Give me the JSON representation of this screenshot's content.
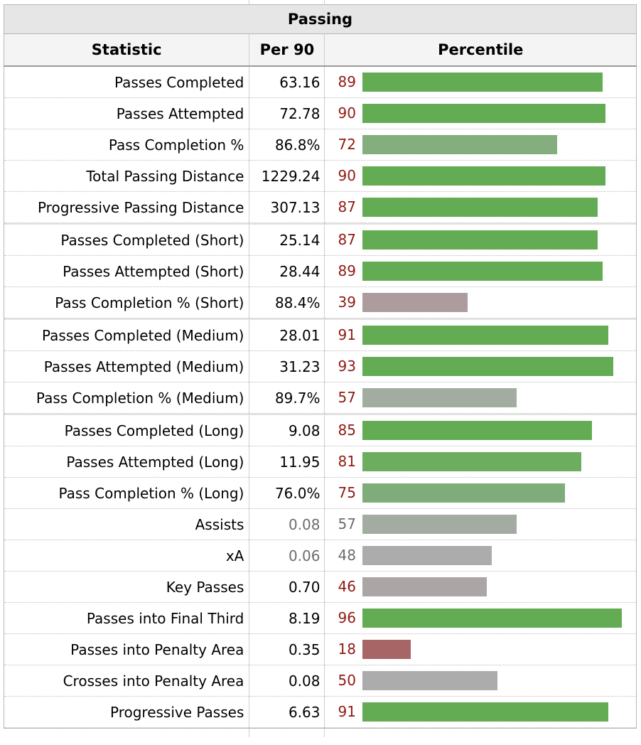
{
  "table_title": "Passing",
  "columns": {
    "statistic": "Statistic",
    "per90": "Per 90",
    "percentile": "Percentile"
  },
  "colors": {
    "high": "#64ac54",
    "mid_high": "#7fad79",
    "mid": "#a3aca1",
    "neutral": "#acacac",
    "low_mid": "#ad9c9e",
    "low": "#a76565",
    "percentile_text": "#8f1a12"
  },
  "groups": [
    [
      {
        "statistic": "Passes Completed",
        "per90": "63.16",
        "percentile": "89",
        "pct_value": 89,
        "color": "#64ac54"
      },
      {
        "statistic": "Passes Attempted",
        "per90": "72.78",
        "percentile": "90",
        "pct_value": 90,
        "color": "#64ac54"
      },
      {
        "statistic": "Pass Completion %",
        "per90": "86.8%",
        "percentile": "72",
        "pct_value": 72,
        "color": "#84ae7d"
      },
      {
        "statistic": "Total Passing Distance",
        "per90": "1229.24",
        "percentile": "90",
        "pct_value": 90,
        "color": "#64ac54"
      },
      {
        "statistic": "Progressive Passing Distance",
        "per90": "307.13",
        "percentile": "87",
        "pct_value": 87,
        "color": "#64ac54"
      }
    ],
    [
      {
        "statistic": "Passes Completed (Short)",
        "per90": "25.14",
        "percentile": "87",
        "pct_value": 87,
        "color": "#64ac54"
      },
      {
        "statistic": "Passes Attempted (Short)",
        "per90": "28.44",
        "percentile": "89",
        "pct_value": 89,
        "color": "#64ac54"
      },
      {
        "statistic": "Pass Completion % (Short)",
        "per90": "88.4%",
        "percentile": "39",
        "pct_value": 39,
        "color": "#ad9c9e"
      }
    ],
    [
      {
        "statistic": "Passes Completed (Medium)",
        "per90": "28.01",
        "percentile": "91",
        "pct_value": 91,
        "color": "#64ac54"
      },
      {
        "statistic": "Passes Attempted (Medium)",
        "per90": "31.23",
        "percentile": "93",
        "pct_value": 93,
        "color": "#64ac54"
      },
      {
        "statistic": "Pass Completion % (Medium)",
        "per90": "89.7%",
        "percentile": "57",
        "pct_value": 57,
        "color": "#a3aca1"
      }
    ],
    [
      {
        "statistic": "Passes Completed (Long)",
        "per90": "9.08",
        "percentile": "85",
        "pct_value": 85,
        "color": "#64ac54"
      },
      {
        "statistic": "Passes Attempted (Long)",
        "per90": "11.95",
        "percentile": "81",
        "pct_value": 81,
        "color": "#6dad60"
      },
      {
        "statistic": "Pass Completion % (Long)",
        "per90": "76.0%",
        "percentile": "75",
        "pct_value": 75,
        "color": "#7fad79"
      },
      {
        "statistic": "Assists",
        "per90": "0.08",
        "percentile": "57",
        "pct_value": 57,
        "color": "#a3aca1",
        "dim": true
      },
      {
        "statistic": "xA",
        "per90": "0.06",
        "percentile": "48",
        "pct_value": 48,
        "color": "#acacac",
        "dim": true
      },
      {
        "statistic": "Key Passes",
        "per90": "0.70",
        "percentile": "46",
        "pct_value": 46,
        "color": "#aba5a6"
      },
      {
        "statistic": "Passes into Final Third",
        "per90": "8.19",
        "percentile": "96",
        "pct_value": 96,
        "color": "#64ac54"
      },
      {
        "statistic": "Passes into Penalty Area",
        "per90": "0.35",
        "percentile": "18",
        "pct_value": 18,
        "color": "#a76565"
      },
      {
        "statistic": "Crosses into Penalty Area",
        "per90": "0.08",
        "percentile": "50",
        "pct_value": 50,
        "color": "#acacac"
      },
      {
        "statistic": "Progressive Passes",
        "per90": "6.63",
        "percentile": "91",
        "pct_value": 91,
        "color": "#64ac54"
      }
    ]
  ]
}
